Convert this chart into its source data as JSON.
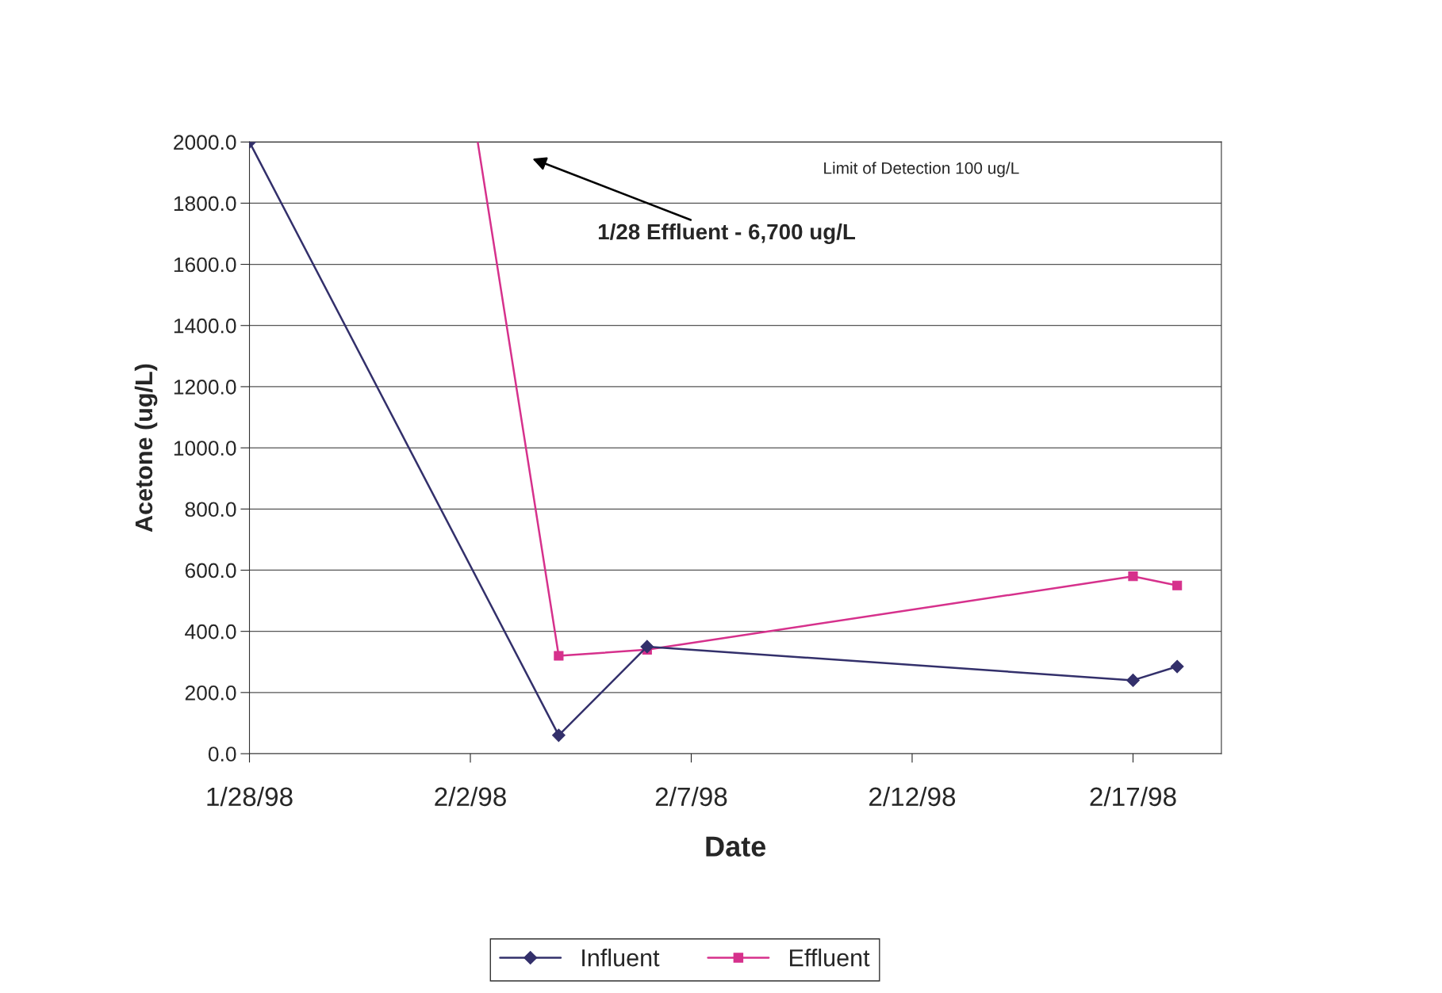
{
  "chart_data": {
    "type": "line",
    "xlabel": "Date",
    "ylabel": "Acetone (ug/L)",
    "x": [
      "1998-01-28",
      "1998-02-04",
      "1998-02-06",
      "1998-02-17",
      "1998-02-18"
    ],
    "series": [
      {
        "name": "Influent",
        "color": "#33306b",
        "marker": "diamond",
        "values": [
          2000,
          60,
          350,
          240,
          285
        ]
      },
      {
        "name": "Effluent",
        "color": "#d6318c",
        "marker": "square",
        "values": [
          null,
          320,
          340,
          580,
          550
        ]
      },
      {
        "color": "#d6318c",
        "marker": "none",
        "x": [
          "1998-02-02T04:00",
          "1998-02-04"
        ],
        "values": [
          2000,
          320
        ]
      }
    ],
    "xlim": [
      "1998-01-28",
      "1998-02-19"
    ],
    "xticks": [
      {
        "value": "1998-01-28",
        "label": "1/28/98"
      },
      {
        "value": "1998-02-02",
        "label": "2/2/98"
      },
      {
        "value": "1998-02-07",
        "label": "2/7/98"
      },
      {
        "value": "1998-02-12",
        "label": "2/12/98"
      },
      {
        "value": "1998-02-17",
        "label": "2/17/98"
      }
    ],
    "ylim": [
      0,
      2000
    ],
    "yticks": [
      {
        "value": 0,
        "label": "0.0"
      },
      {
        "value": 200,
        "label": "200.0"
      },
      {
        "value": 400,
        "label": "400.0"
      },
      {
        "value": 600,
        "label": "600.0"
      },
      {
        "value": 800,
        "label": "800.0"
      },
      {
        "value": 1000,
        "label": "1000.0"
      },
      {
        "value": 1200,
        "label": "1200.0"
      },
      {
        "value": 1400,
        "label": "1400.0"
      },
      {
        "value": 1600,
        "label": "1600.0"
      },
      {
        "value": 1800,
        "label": "1800.0"
      },
      {
        "value": 2000,
        "label": "2000.0"
      }
    ],
    "annotations": [
      "Limit of Detection 100 ug/L",
      "1/28 Effluent - 6,700 ug/L"
    ],
    "grid": "y",
    "legend": "bottom",
    "line_style": "solid"
  }
}
